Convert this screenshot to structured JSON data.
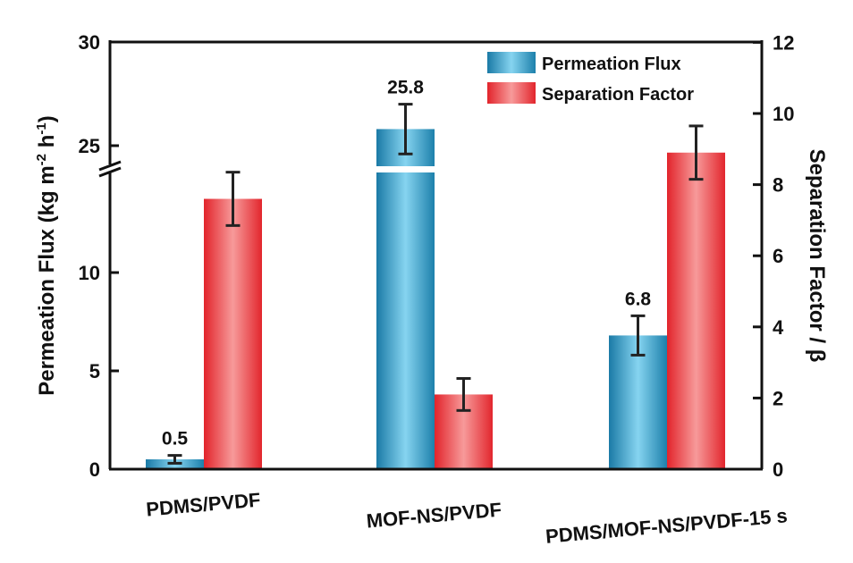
{
  "chart_data": {
    "type": "bar",
    "title": "",
    "categories": [
      "PDMS/PVDF",
      "MOF-NS/PVDF",
      "PDMS/MOF-NS/PVDF-15 s"
    ],
    "series": [
      {
        "name": "Permeation Flux",
        "axis": "left",
        "values": [
          0.5,
          25.8,
          6.8
        ],
        "errors": [
          0.2,
          1.2,
          1.0
        ],
        "data_labels": [
          "0.5",
          "25.8",
          "6.8"
        ],
        "color": "#2a95c4"
      },
      {
        "name": "Separation Factor",
        "axis": "right",
        "values": [
          7.6,
          2.1,
          8.9
        ],
        "errors": [
          0.75,
          0.45,
          0.75
        ],
        "color": "#e63238"
      }
    ],
    "ylabel": "Permeation Flux (kg m-2 h-1)",
    "ylabel_parts": {
      "main": "Permeation Flux (kg m",
      "sup1": "-2",
      "mid": " h",
      "sup2": "-1",
      "end": ")"
    },
    "y2label": "Separation Factor / β",
    "ylim": [
      0,
      30
    ],
    "ybreak": [
      15,
      24
    ],
    "yticks": [
      "0",
      "5",
      "10",
      "25",
      "30"
    ],
    "y2lim": [
      0,
      12
    ],
    "y2ticks": [
      "0",
      "2",
      "4",
      "6",
      "8",
      "10",
      "12"
    ],
    "legend_position": "top-right",
    "grid": false
  }
}
